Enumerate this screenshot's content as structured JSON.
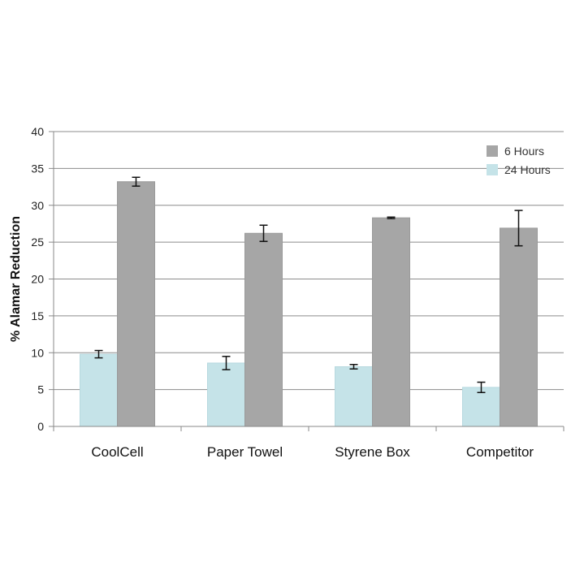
{
  "chart_data": {
    "type": "bar",
    "title": "",
    "xlabel": "",
    "ylabel": "% Alamar  Reduction",
    "ylim": [
      0,
      40
    ],
    "yticks": [
      0,
      5,
      10,
      15,
      20,
      25,
      30,
      35,
      40
    ],
    "grid": true,
    "legend_position": "top-right",
    "categories": [
      "CoolCell",
      "Paper Towel",
      "Styrene Box",
      "Competitor"
    ],
    "series": [
      {
        "name": "24 Hours",
        "color": "#c5e3e8",
        "values": [
          9.8,
          8.6,
          8.1,
          5.3
        ],
        "errors": [
          0.5,
          0.9,
          0.3,
          0.7
        ]
      },
      {
        "name": "6 Hours",
        "color": "#a6a6a6",
        "values": [
          33.2,
          26.2,
          28.3,
          26.9
        ],
        "errors": [
          0.6,
          1.1,
          0.1,
          2.4
        ]
      }
    ],
    "legend_order": [
      "6 Hours",
      "24 Hours"
    ]
  }
}
